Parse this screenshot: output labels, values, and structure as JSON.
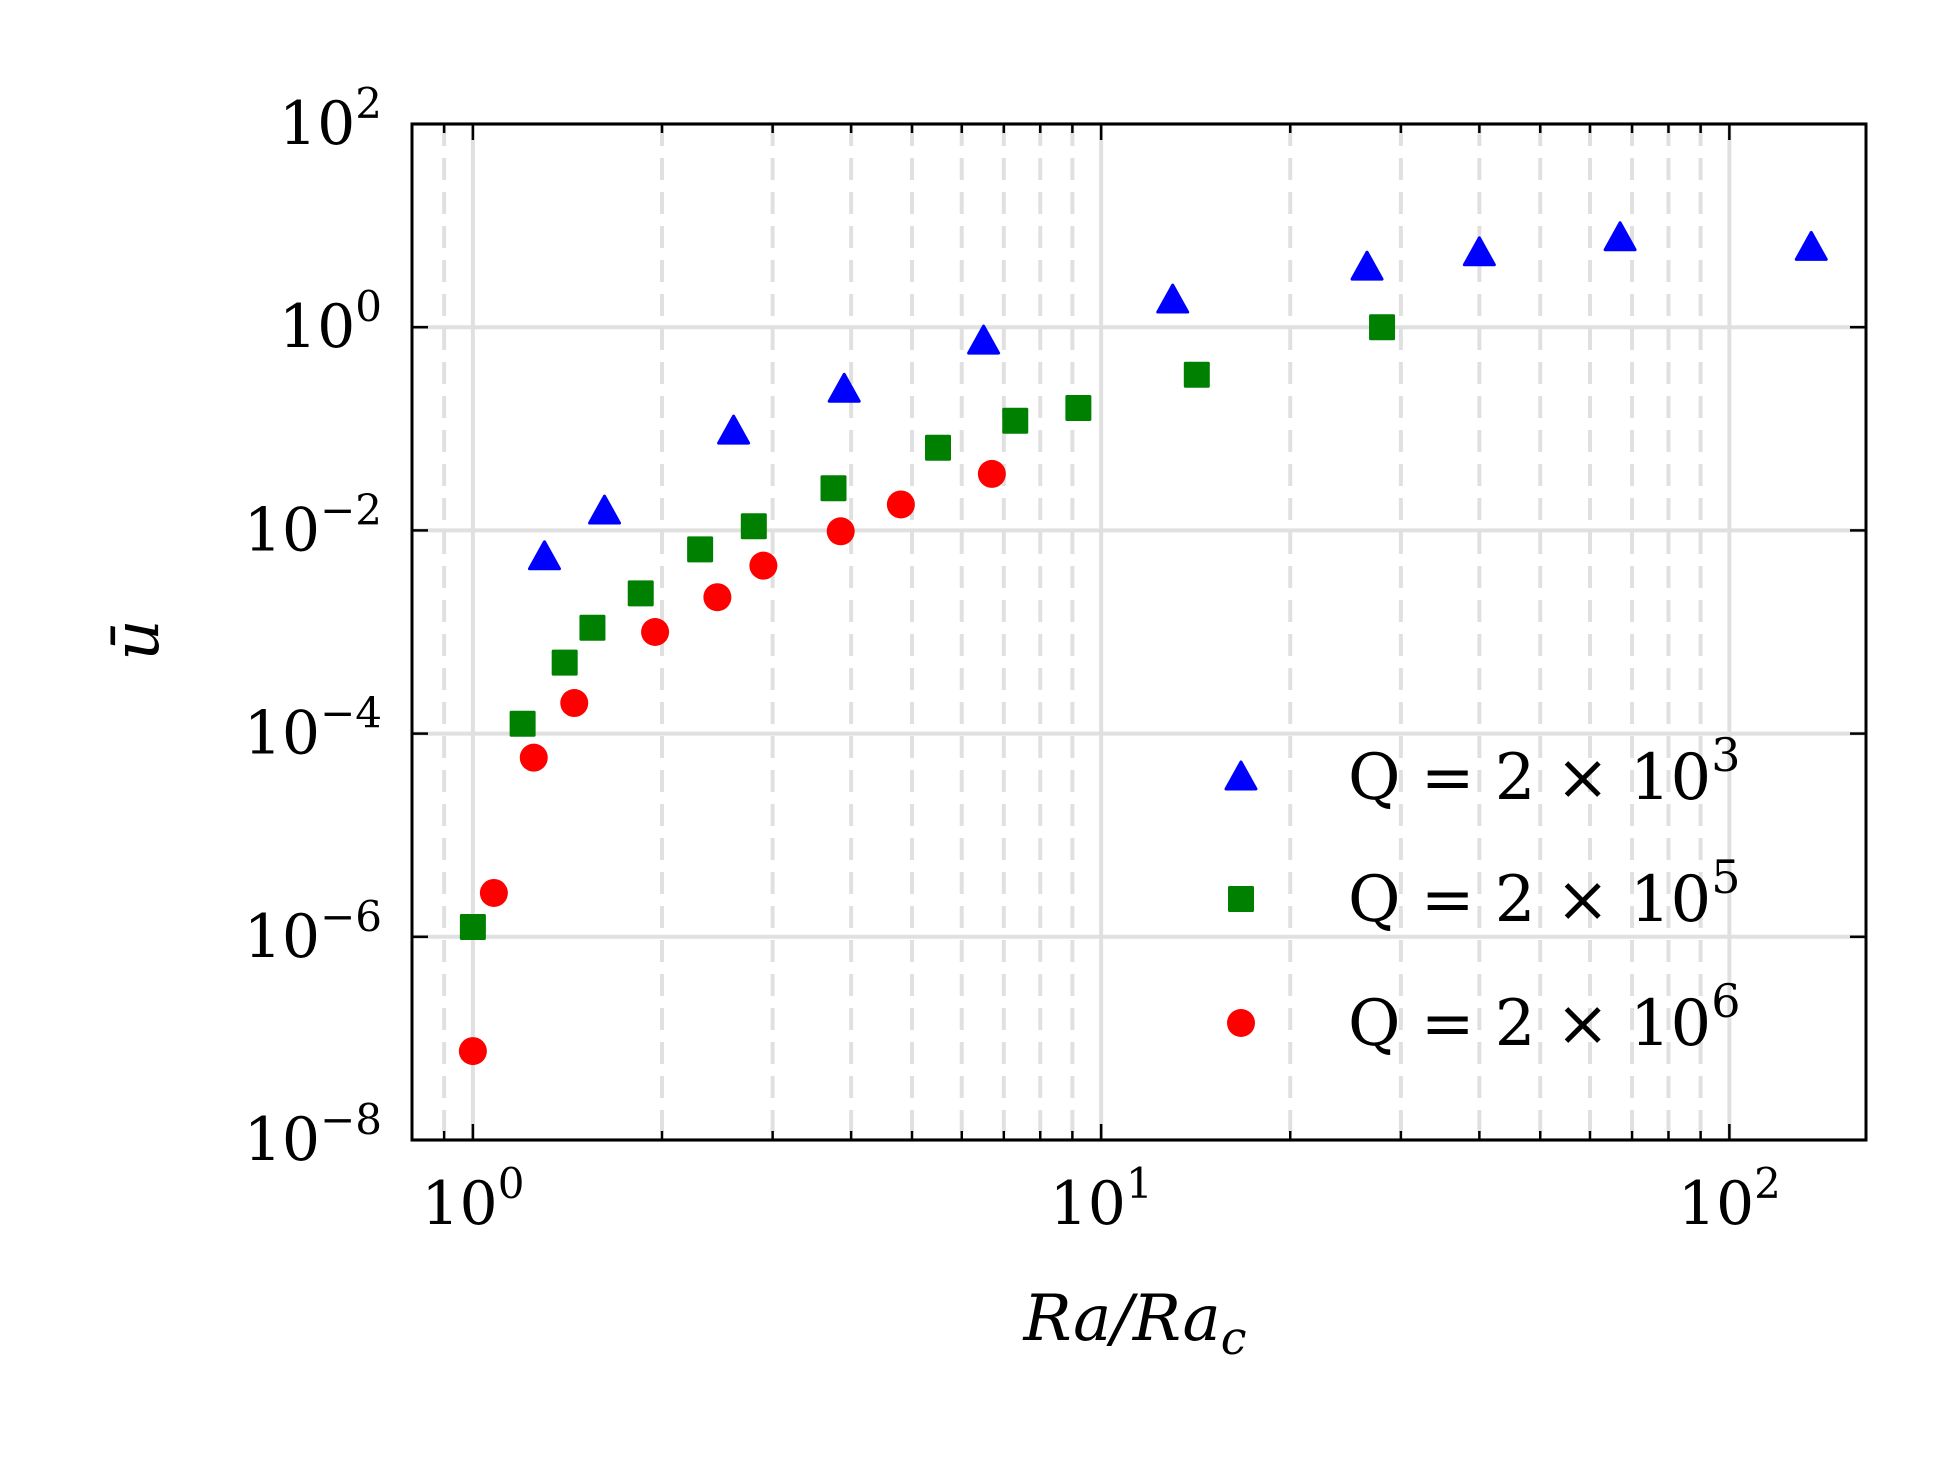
{
  "chart_data": {
    "type": "scatter",
    "title": "",
    "xlabel": "Ra/Ra_c",
    "ylabel": "ū",
    "xscale": "log",
    "yscale": "log",
    "xlim": [
      0.8,
      165
    ],
    "ylim": [
      1e-08,
      100
    ],
    "grid": true,
    "legend_position": "lower-right",
    "x_ticks": [
      {
        "value": 1,
        "base": "10",
        "exp": "0"
      },
      {
        "value": 10,
        "base": "10",
        "exp": "1"
      },
      {
        "value": 100,
        "base": "10",
        "exp": "2"
      }
    ],
    "y_ticks": [
      {
        "value": 1e-08,
        "base": "10",
        "exp": "−8"
      },
      {
        "value": 1e-06,
        "base": "10",
        "exp": "−6"
      },
      {
        "value": 0.0001,
        "base": "10",
        "exp": "−4"
      },
      {
        "value": 0.01,
        "base": "10",
        "exp": "−2"
      },
      {
        "value": 1,
        "base": "10",
        "exp": "0"
      },
      {
        "value": 100,
        "base": "10",
        "exp": "2"
      }
    ],
    "series": [
      {
        "name": "Q = 2 × 10^3",
        "label_main": "Q = 2 × 10",
        "label_exp": "3",
        "marker": "triangle",
        "color": "#0000ff",
        "x": [
          1.3,
          1.62,
          2.6,
          3.9,
          6.5,
          13.0,
          26.5,
          40.0,
          67.0,
          135.0
        ],
        "y": [
          0.0055,
          0.0155,
          0.095,
          0.245,
          0.73,
          1.85,
          3.9,
          5.4,
          7.6,
          6.1
        ]
      },
      {
        "name": "Q = 2 × 10^5",
        "label_main": "Q = 2 × 10",
        "label_exp": "5",
        "marker": "square",
        "color": "#008000",
        "x": [
          1.0,
          1.2,
          1.4,
          1.55,
          1.85,
          2.3,
          2.8,
          3.75,
          5.5,
          7.3,
          9.2,
          14.2,
          28.0
        ],
        "y": [
          1.25e-06,
          0.000125,
          0.0005,
          0.0011,
          0.0024,
          0.0065,
          0.011,
          0.026,
          0.065,
          0.12,
          0.16,
          0.34,
          1.0
        ]
      },
      {
        "name": "Q = 2 × 10^6",
        "label_main": "Q = 2 × 10",
        "label_exp": "6",
        "marker": "circle",
        "color": "#ff0000",
        "x": [
          1.0,
          1.08,
          1.25,
          1.45,
          1.95,
          2.45,
          2.9,
          3.85,
          4.8,
          6.7
        ],
        "y": [
          7.5e-08,
          2.7e-06,
          5.8e-05,
          0.0002,
          0.001,
          0.0022,
          0.0045,
          0.0098,
          0.018,
          0.036
        ]
      }
    ]
  }
}
